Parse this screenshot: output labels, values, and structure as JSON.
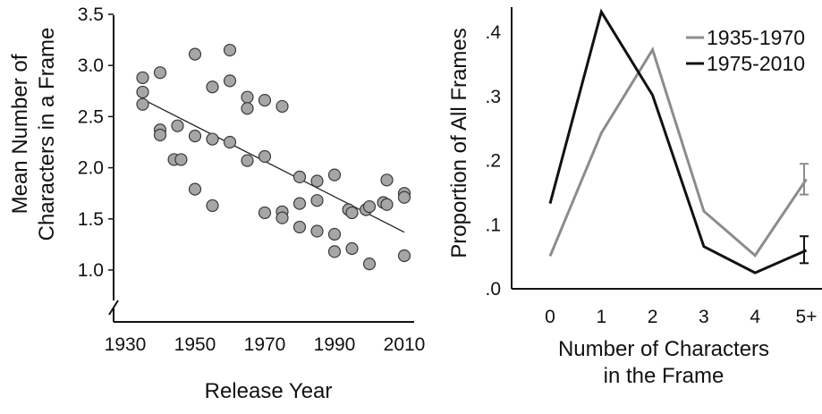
{
  "chart_data": [
    {
      "type": "scatter",
      "title": "",
      "xlabel": "Release Year",
      "ylabel": "Mean Number of Characters in a Frame",
      "xlim": [
        1930,
        2012
      ],
      "ylim": [
        0.8,
        3.5
      ],
      "x_ticks": [
        "1930",
        "1950",
        "1970",
        "1990",
        "2010"
      ],
      "y_ticks": [
        "1.0",
        "1.5",
        "2.0",
        "2.5",
        "3.0",
        "3.5"
      ],
      "axis_break": "y",
      "grid": false,
      "points": [
        {
          "x": 1935,
          "y": 2.88
        },
        {
          "x": 1935,
          "y": 2.74
        },
        {
          "x": 1935,
          "y": 2.62
        },
        {
          "x": 1940,
          "y": 2.93
        },
        {
          "x": 1940,
          "y": 2.37
        },
        {
          "x": 1940,
          "y": 2.32
        },
        {
          "x": 1944,
          "y": 2.08
        },
        {
          "x": 1945,
          "y": 2.41
        },
        {
          "x": 1946,
          "y": 2.08
        },
        {
          "x": 1950,
          "y": 3.11
        },
        {
          "x": 1950,
          "y": 2.31
        },
        {
          "x": 1950,
          "y": 1.79
        },
        {
          "x": 1955,
          "y": 2.79
        },
        {
          "x": 1955,
          "y": 2.28
        },
        {
          "x": 1955,
          "y": 1.63
        },
        {
          "x": 1960,
          "y": 3.15
        },
        {
          "x": 1960,
          "y": 2.85
        },
        {
          "x": 1960,
          "y": 2.25
        },
        {
          "x": 1965,
          "y": 2.69
        },
        {
          "x": 1965,
          "y": 2.58
        },
        {
          "x": 1965,
          "y": 2.07
        },
        {
          "x": 1970,
          "y": 2.66
        },
        {
          "x": 1970,
          "y": 2.11
        },
        {
          "x": 1970,
          "y": 1.56
        },
        {
          "x": 1975,
          "y": 2.6
        },
        {
          "x": 1975,
          "y": 1.57
        },
        {
          "x": 1975,
          "y": 1.51
        },
        {
          "x": 1980,
          "y": 1.91
        },
        {
          "x": 1980,
          "y": 1.65
        },
        {
          "x": 1980,
          "y": 1.42
        },
        {
          "x": 1985,
          "y": 1.87
        },
        {
          "x": 1985,
          "y": 1.68
        },
        {
          "x": 1985,
          "y": 1.38
        },
        {
          "x": 1990,
          "y": 1.93
        },
        {
          "x": 1990,
          "y": 1.35
        },
        {
          "x": 1990,
          "y": 1.18
        },
        {
          "x": 1994,
          "y": 1.59
        },
        {
          "x": 1995,
          "y": 1.56
        },
        {
          "x": 1995,
          "y": 1.21
        },
        {
          "x": 1999,
          "y": 1.59
        },
        {
          "x": 2000,
          "y": 1.62
        },
        {
          "x": 2000,
          "y": 1.06
        },
        {
          "x": 2004,
          "y": 1.66
        },
        {
          "x": 2005,
          "y": 1.88
        },
        {
          "x": 2005,
          "y": 1.64
        },
        {
          "x": 2010,
          "y": 1.75
        },
        {
          "x": 2010,
          "y": 1.71
        },
        {
          "x": 2010,
          "y": 1.14
        }
      ],
      "trendline": [
        {
          "x": 1935,
          "y": 2.67
        },
        {
          "x": 2010,
          "y": 1.37
        }
      ],
      "colors": {
        "marker_fill": "#a6a6a6",
        "marker_stroke": "#3a3a3a",
        "trendline": "#222222"
      }
    },
    {
      "type": "line",
      "title": "",
      "xlabel": "Number of Characters in the Frame",
      "ylabel": "Proportion of All Frames",
      "categories": [
        "0",
        "1",
        "2",
        "3",
        "4",
        "5+"
      ],
      "y_ticks": [
        ".0",
        ".1",
        ".2",
        ".3",
        ".4"
      ],
      "ylim": [
        0,
        0.45
      ],
      "grid": false,
      "legend_position": "top-right",
      "series": [
        {
          "name": "1935-1970",
          "color": "#8c8c8c",
          "values": [
            0.051,
            0.243,
            0.373,
            0.121,
            0.052,
            0.171
          ],
          "error_5plus": [
            0.147,
            0.195
          ]
        },
        {
          "name": "1975-2010",
          "color": "#111111",
          "values": [
            0.133,
            0.432,
            0.302,
            0.066,
            0.025,
            0.06
          ],
          "error_5plus": [
            0.04,
            0.082
          ]
        }
      ]
    }
  ]
}
